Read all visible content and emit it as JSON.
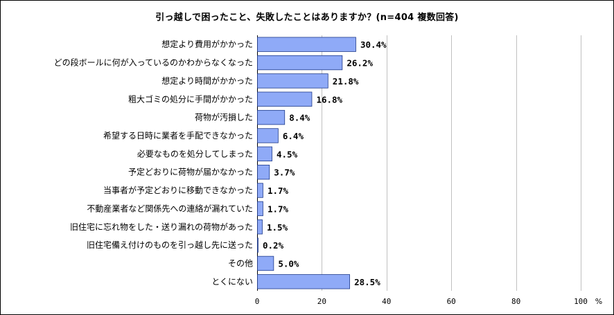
{
  "chart_data": {
    "type": "bar",
    "orientation": "horizontal",
    "title": "引っ越しで困ったこと、失敗したことはありますか？(n=404 複数回答)",
    "categories": [
      "想定より費用がかかった",
      "どの段ボールに何が入っているのかわからなくなった",
      "想定より時間がかかった",
      "粗大ゴミの処分に手間がかかった",
      "荷物が汚損した",
      "希望する日時に業者を手配できなかった",
      "必要なものを処分してしまった",
      "予定どおりに荷物が届かなかった",
      "当事者が予定どおりに移動できなかった",
      "不動産業者など関係先への連絡が漏れていた",
      "旧住宅に忘れ物をした・送り漏れの荷物があった",
      "旧住宅備え付けのものを引っ越し先に送った",
      "その他",
      "とくにない"
    ],
    "values": [
      30.4,
      26.2,
      21.8,
      16.8,
      8.4,
      6.4,
      4.5,
      3.7,
      1.7,
      1.7,
      1.5,
      0.2,
      5.0,
      28.5
    ],
    "value_labels": [
      "30.4%",
      "26.2%",
      "21.8%",
      "16.8%",
      "8.4%",
      "6.4%",
      "4.5%",
      "3.7%",
      "1.7%",
      "1.7%",
      "1.5%",
      "0.2%",
      "5.0%",
      "28.5%"
    ],
    "x_ticks": [
      "0",
      "20",
      "40",
      "60",
      "80",
      "100"
    ],
    "x_unit": "%",
    "xlim": [
      0,
      100
    ],
    "grid": true,
    "bar_color": "#8faaf7",
    "bar_edge_color": "#1e3a8a",
    "grid_color": "#c0c0c0"
  }
}
